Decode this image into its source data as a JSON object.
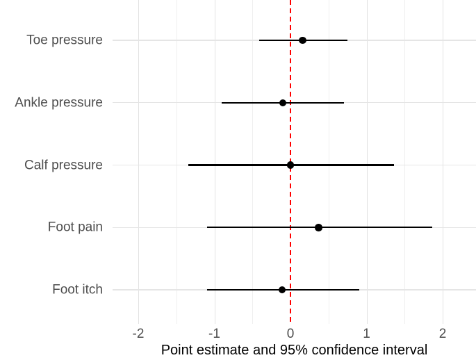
{
  "chart_data": {
    "type": "scatter",
    "subtype": "forest-plot-horizontal-error-bars",
    "title": "",
    "xlabel": "Point estimate and 95% confidence interval",
    "ylabel": "",
    "xlim": [
      -2.35,
      2.45
    ],
    "grid": true,
    "legend": false,
    "categories": [
      "Toe pressure",
      "Ankle pressure",
      "Calf pressure",
      "Foot pain",
      "Foot itch"
    ],
    "rows": [
      {
        "label": "Toe pressure",
        "estimate": 0.16,
        "ci_low": -0.41,
        "ci_high": 0.75
      },
      {
        "label": "Ankle pressure",
        "estimate": -0.1,
        "ci_low": -0.9,
        "ci_high": 0.7
      },
      {
        "label": "Calf pressure",
        "estimate": 0.0,
        "ci_low": -1.34,
        "ci_high": 1.36
      },
      {
        "label": "Foot pain",
        "estimate": 0.37,
        "ci_low": -1.1,
        "ci_high": 1.86
      },
      {
        "label": "Foot itch",
        "estimate": -0.11,
        "ci_low": -1.1,
        "ci_high": 0.9
      }
    ],
    "x_ticks": [
      {
        "value": -2,
        "label": "-2"
      },
      {
        "value": -1,
        "label": "-1"
      },
      {
        "value": 0,
        "label": "0"
      },
      {
        "value": 1,
        "label": "1"
      },
      {
        "value": 2,
        "label": "2"
      }
    ],
    "x_minor_gridlines": [
      -1.5,
      -0.5,
      0.5,
      1.5
    ],
    "reference_line": {
      "x": 0,
      "style": "dashed",
      "color": "#ff0000"
    },
    "colors": {
      "point": "#000000",
      "interval": "#000000",
      "reference": "#ff0000",
      "grid_major": "#e2e2e2",
      "grid_minor": "#efefef",
      "axis_text": "#4d4d4d",
      "axis_title": "#000000",
      "background": "#ffffff"
    }
  }
}
